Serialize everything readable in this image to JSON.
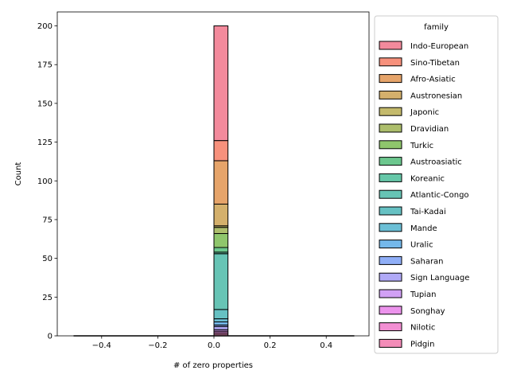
{
  "chart_data": {
    "type": "bar",
    "title": "",
    "xlabel": "# of zero properties",
    "ylabel": "Count",
    "xlim": [
      -0.55,
      0.55
    ],
    "ylim": [
      0,
      209
    ],
    "xticks": [
      -0.4,
      -0.2,
      0.0,
      0.2,
      0.4
    ],
    "xtick_labels": [
      "−0.4",
      "−0.2",
      "0.0",
      "0.2",
      "0.4"
    ],
    "yticks": [
      0,
      25,
      50,
      75,
      100,
      125,
      150,
      175,
      200
    ],
    "ytick_labels": [
      "0",
      "25",
      "50",
      "75",
      "100",
      "125",
      "150",
      "175",
      "200"
    ],
    "bar_x_range": [
      0.0,
      0.05
    ],
    "baseline_x_range": [
      -0.5,
      0.5
    ],
    "stacked": true,
    "legend": {
      "title": "family",
      "position": "right"
    },
    "series": [
      {
        "name": "Indo-European",
        "value": 74,
        "color": "#f38a9c"
      },
      {
        "name": "Sino-Tibetan",
        "value": 13,
        "color": "#f7917c"
      },
      {
        "name": "Afro-Asiatic",
        "value": 28,
        "color": "#e6a46a"
      },
      {
        "name": "Austronesian",
        "value": 14,
        "color": "#d4b06c"
      },
      {
        "name": "Japonic",
        "value": 1,
        "color": "#c4ba6c"
      },
      {
        "name": "Dravidian",
        "value": 4,
        "color": "#adbe6c"
      },
      {
        "name": "Turkic",
        "value": 9,
        "color": "#8fc66c"
      },
      {
        "name": "Austroasiatic",
        "value": 3,
        "color": "#6cc78e"
      },
      {
        "name": "Koreanic",
        "value": 1,
        "color": "#66c7a8"
      },
      {
        "name": "Atlantic-Congo",
        "value": 36,
        "color": "#67c4b5"
      },
      {
        "name": "Tai-Kadai",
        "value": 6,
        "color": "#66c1c3"
      },
      {
        "name": "Mande",
        "value": 2,
        "color": "#6bbfd6"
      },
      {
        "name": "Uralic",
        "value": 2,
        "color": "#74b8eb"
      },
      {
        "name": "Saharan",
        "value": 1,
        "color": "#8faef7"
      },
      {
        "name": "Sign Language",
        "value": 2,
        "color": "#b0a9f7"
      },
      {
        "name": "Tupian",
        "value": 1,
        "color": "#d1a0f5"
      },
      {
        "name": "Songhay",
        "value": 1,
        "color": "#ec93ec"
      },
      {
        "name": "Nilotic",
        "value": 1,
        "color": "#f38fd3"
      },
      {
        "name": "Pidgin",
        "value": 1,
        "color": "#f38cb8"
      }
    ]
  }
}
